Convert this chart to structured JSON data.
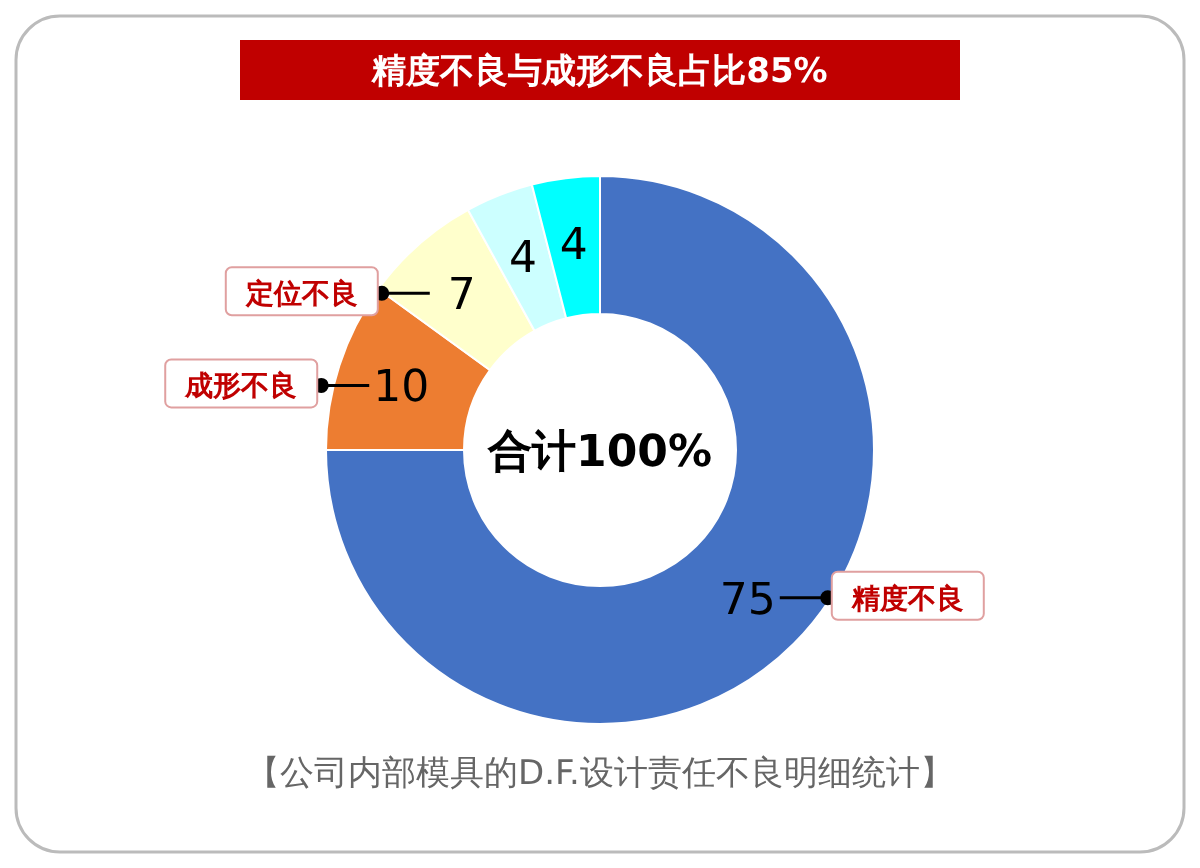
{
  "chart_data": {
    "type": "donut",
    "title": "精度不良与成形不良占比85%",
    "categories": [
      "精度不良",
      "成形不良",
      "定位不良",
      null,
      null
    ],
    "values": [
      75,
      10,
      7,
      4,
      4
    ],
    "colors": [
      "#4472c4",
      "#ed7d31",
      "#ffffcc",
      "#ccffff",
      "#00ffff"
    ],
    "data_labels": true,
    "annotations": [
      "合计100%",
      "【公司内部模具的D.F.设计责任不良明细统计】"
    ]
  }
}
